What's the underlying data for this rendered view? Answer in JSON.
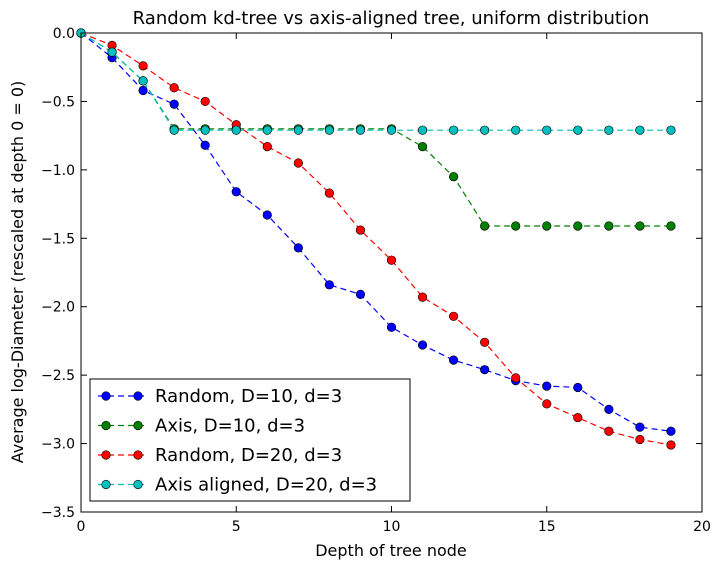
{
  "chart_data": {
    "type": "line",
    "title": "Random kd-tree vs axis-aligned tree, uniform distribution",
    "xlabel": "Depth of tree node",
    "ylabel": "Average log-Diameter (rescaled at depth 0 = 0)",
    "xlim": [
      0,
      20
    ],
    "ylim": [
      -3.5,
      0.0
    ],
    "xticks": [
      0,
      5,
      10,
      15,
      20
    ],
    "xtick_labels": [
      "0",
      "5",
      "10",
      "15",
      "20"
    ],
    "yticks": [
      0.0,
      -0.5,
      -1.0,
      -1.5,
      -2.0,
      -2.5,
      -3.0,
      -3.5
    ],
    "ytick_labels": [
      "0.0",
      "−0.5",
      "−1.0",
      "−1.5",
      "−2.0",
      "−2.5",
      "−3.0",
      "−3.5"
    ],
    "grid": false,
    "legend_position": "lower-left",
    "x": [
      0,
      1,
      2,
      3,
      4,
      5,
      6,
      7,
      8,
      9,
      10,
      11,
      12,
      13,
      14,
      15,
      16,
      17,
      18,
      19
    ],
    "series": [
      {
        "name": "Random, D=10, d=3",
        "color": "#0000ff",
        "values": [
          0.0,
          -0.18,
          -0.42,
          -0.52,
          -0.82,
          -1.16,
          -1.33,
          -1.57,
          -1.84,
          -1.91,
          -2.15,
          -2.28,
          -2.39,
          -2.46,
          -2.54,
          -2.58,
          -2.59,
          -2.75,
          -2.88,
          -2.91
        ]
      },
      {
        "name": "Axis, D=10, d=3",
        "color": "#008000",
        "values": [
          0.0,
          -0.14,
          -0.35,
          -0.7,
          -0.7,
          -0.7,
          -0.7,
          -0.7,
          -0.7,
          -0.7,
          -0.7,
          -0.83,
          -1.05,
          -1.41,
          -1.41,
          -1.41,
          -1.41,
          -1.41,
          -1.41,
          -1.41
        ]
      },
      {
        "name": "Random, D=20, d=3",
        "color": "#ff0000",
        "values": [
          0.0,
          -0.09,
          -0.24,
          -0.4,
          -0.5,
          -0.67,
          -0.83,
          -0.95,
          -1.17,
          -1.44,
          -1.66,
          -1.93,
          -2.07,
          -2.26,
          -2.52,
          -2.71,
          -2.81,
          -2.91,
          -2.97,
          -3.01
        ]
      },
      {
        "name": "Axis aligned, D=20, d=3",
        "color": "#00bfbf",
        "values": [
          0.0,
          -0.14,
          -0.35,
          -0.71,
          -0.71,
          -0.71,
          -0.71,
          -0.71,
          -0.71,
          -0.71,
          -0.71,
          -0.71,
          -0.71,
          -0.71,
          -0.71,
          -0.71,
          -0.71,
          -0.71,
          -0.71,
          -0.71
        ]
      }
    ]
  }
}
